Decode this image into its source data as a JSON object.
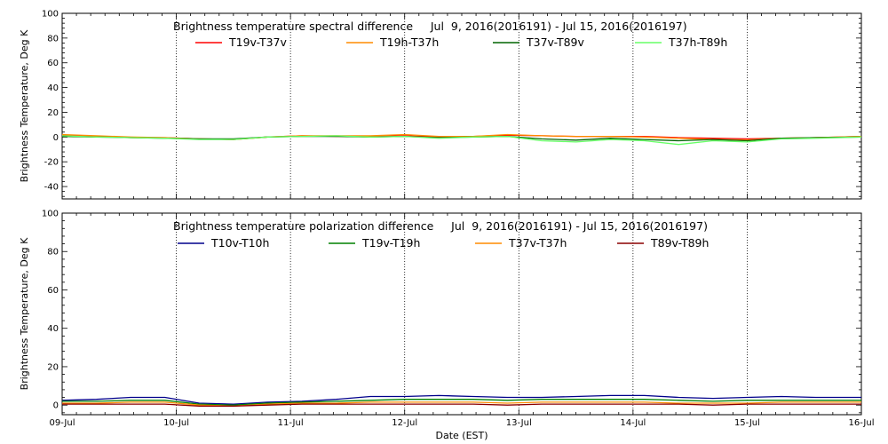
{
  "chart_data": [
    {
      "type": "line",
      "title": "Brightness temperature spectral difference     Jul  9, 2016(2016191) - Jul 15, 2016(2016197)",
      "ylabel": "Brightness Temperature, Deg K",
      "ylim": [
        -50,
        100
      ],
      "yticks": [
        "-40",
        "-20",
        "0",
        "20",
        "40",
        "60",
        "80",
        "100"
      ],
      "xlim": [
        0,
        7
      ],
      "grid": true,
      "legend_position": "top",
      "series": [
        {
          "name": "T19v-T37v",
          "color": "#ff0000",
          "x": [
            0,
            0.3,
            0.6,
            0.9,
            1.2,
            1.5,
            1.8,
            2.1,
            2.4,
            2.7,
            3.0,
            3.3,
            3.6,
            3.9,
            4.2,
            4.5,
            4.8,
            5.1,
            5.4,
            5.7,
            6.0,
            6.3,
            6.6,
            7.0
          ],
          "y": [
            1.5,
            0.5,
            -0.5,
            -0.5,
            -1.5,
            -2,
            0,
            1,
            0.5,
            0.5,
            1,
            0,
            0.5,
            1.5,
            1,
            0.5,
            0.5,
            0.5,
            -0.5,
            -1,
            -1.5,
            -1,
            -0.5,
            0.5
          ]
        },
        {
          "name": "T19h-T37h",
          "color": "#ff8c00",
          "x": [
            0,
            0.3,
            0.6,
            0.9,
            1.2,
            1.5,
            1.8,
            2.1,
            2.4,
            2.7,
            3.0,
            3.3,
            3.6,
            3.9,
            4.2,
            4.5,
            4.8,
            5.1,
            5.4,
            5.7,
            6.0,
            6.3,
            6.6,
            7.0
          ],
          "y": [
            2,
            1,
            0,
            -0.5,
            -1.5,
            -2,
            0,
            1,
            1,
            1,
            2,
            0.5,
            0.5,
            2,
            1,
            0.5,
            0.5,
            0,
            -1,
            -2,
            -2.5,
            -1,
            -0.5,
            0.5
          ]
        },
        {
          "name": "T37v-T89v",
          "color": "#006400",
          "x": [
            0,
            0.3,
            0.6,
            0.9,
            1.2,
            1.5,
            1.8,
            2.1,
            2.4,
            2.7,
            3.0,
            3.3,
            3.6,
            3.9,
            4.2,
            4.5,
            4.8,
            5.1,
            5.4,
            5.7,
            6.0,
            6.3,
            6.6,
            7.0
          ],
          "y": [
            0.5,
            0,
            -0.5,
            -1,
            -1.5,
            -1.5,
            0,
            0.5,
            0.5,
            0,
            0.5,
            -0.5,
            0,
            0.5,
            -1.5,
            -2.5,
            -1,
            -2,
            -3,
            -2,
            -3,
            -1,
            -0.5,
            0
          ]
        },
        {
          "name": "T37h-T89h",
          "color": "#66ff66",
          "x": [
            0,
            0.3,
            0.6,
            0.9,
            1.2,
            1.5,
            1.8,
            2.1,
            2.4,
            2.7,
            3.0,
            3.3,
            3.6,
            3.9,
            4.2,
            4.5,
            4.8,
            5.1,
            5.4,
            5.7,
            6.0,
            6.3,
            6.6,
            7.0
          ],
          "y": [
            1,
            0,
            -0.5,
            -1,
            -2,
            -2,
            0,
            0.5,
            1,
            0,
            0.5,
            -1,
            0,
            0.5,
            -3,
            -4,
            -2,
            -3,
            -6,
            -3,
            -4,
            -1.5,
            -1,
            0
          ]
        }
      ]
    },
    {
      "type": "line",
      "title": "Brightness temperature polarization difference     Jul  9, 2016(2016191) - Jul 15, 2016(2016197)",
      "ylabel": "Brightness Temperature, Deg K",
      "xlabel": "Date (EST)",
      "ylim": [
        -5,
        100
      ],
      "yticks": [
        "0",
        "20",
        "40",
        "60",
        "80",
        "100"
      ],
      "xlim": [
        0,
        7
      ],
      "categories": [
        "09-Jul",
        "10-Jul",
        "11-Jul",
        "12-Jul",
        "13-Jul",
        "14-Jul",
        "15-Jul",
        "16-Jul"
      ],
      "grid": true,
      "legend_position": "top",
      "series": [
        {
          "name": "T10v-T10h",
          "color": "#00008b",
          "x": [
            0,
            0.3,
            0.6,
            0.9,
            1.2,
            1.5,
            1.8,
            2.1,
            2.4,
            2.7,
            3.0,
            3.3,
            3.6,
            3.9,
            4.2,
            4.5,
            4.8,
            5.1,
            5.4,
            5.7,
            6.0,
            6.3,
            6.6,
            7.0
          ],
          "y": [
            2.5,
            3,
            4,
            4,
            1,
            0.5,
            1.5,
            2,
            3,
            4.5,
            4.5,
            5,
            4.5,
            4,
            4,
            4.5,
            5,
            5,
            4,
            3.5,
            4,
            4.5,
            4,
            4
          ]
        },
        {
          "name": "T19v-T19h",
          "color": "#008000",
          "x": [
            0,
            0.3,
            0.6,
            0.9,
            1.2,
            1.5,
            1.8,
            2.1,
            2.4,
            2.7,
            3.0,
            3.3,
            3.6,
            3.9,
            4.2,
            4.5,
            4.8,
            5.1,
            5.4,
            5.7,
            6.0,
            6.3,
            6.6,
            7.0
          ],
          "y": [
            2,
            2,
            2.5,
            2.5,
            0.5,
            0,
            1,
            1.5,
            2,
            2.5,
            3,
            3,
            3,
            2.5,
            3,
            3,
            3,
            3,
            2.5,
            2,
            2.5,
            2.5,
            2.5,
            2.5
          ]
        },
        {
          "name": "T37v-T37h",
          "color": "#ff8c00",
          "x": [
            0,
            0.3,
            0.6,
            0.9,
            1.2,
            1.5,
            1.8,
            2.1,
            2.4,
            2.7,
            3.0,
            3.3,
            3.6,
            3.9,
            4.2,
            4.5,
            4.8,
            5.1,
            5.4,
            5.7,
            6.0,
            6.3,
            6.6,
            7.0
          ],
          "y": [
            1,
            1,
            1.5,
            1.5,
            0,
            -0.5,
            0.5,
            1,
            1,
            1.5,
            1.5,
            1.5,
            1.5,
            1,
            1.5,
            1.5,
            1.5,
            1.5,
            1,
            1,
            1,
            1.5,
            1.5,
            1.5
          ]
        },
        {
          "name": "T89v-T89h",
          "color": "#8b0000",
          "x": [
            0,
            0.3,
            0.6,
            0.9,
            1.2,
            1.5,
            1.8,
            2.1,
            2.4,
            2.7,
            3.0,
            3.3,
            3.6,
            3.9,
            4.2,
            4.5,
            4.8,
            5.1,
            5.4,
            5.7,
            6.0,
            6.3,
            6.6,
            7.0
          ],
          "y": [
            0.5,
            0.5,
            0.5,
            0.5,
            -0.5,
            -0.5,
            0,
            0.5,
            0.5,
            0.5,
            0.5,
            0.5,
            0.5,
            0,
            0.5,
            0.5,
            0.5,
            0.5,
            0.5,
            0,
            0.5,
            0.5,
            0.5,
            0.5
          ]
        }
      ]
    }
  ]
}
